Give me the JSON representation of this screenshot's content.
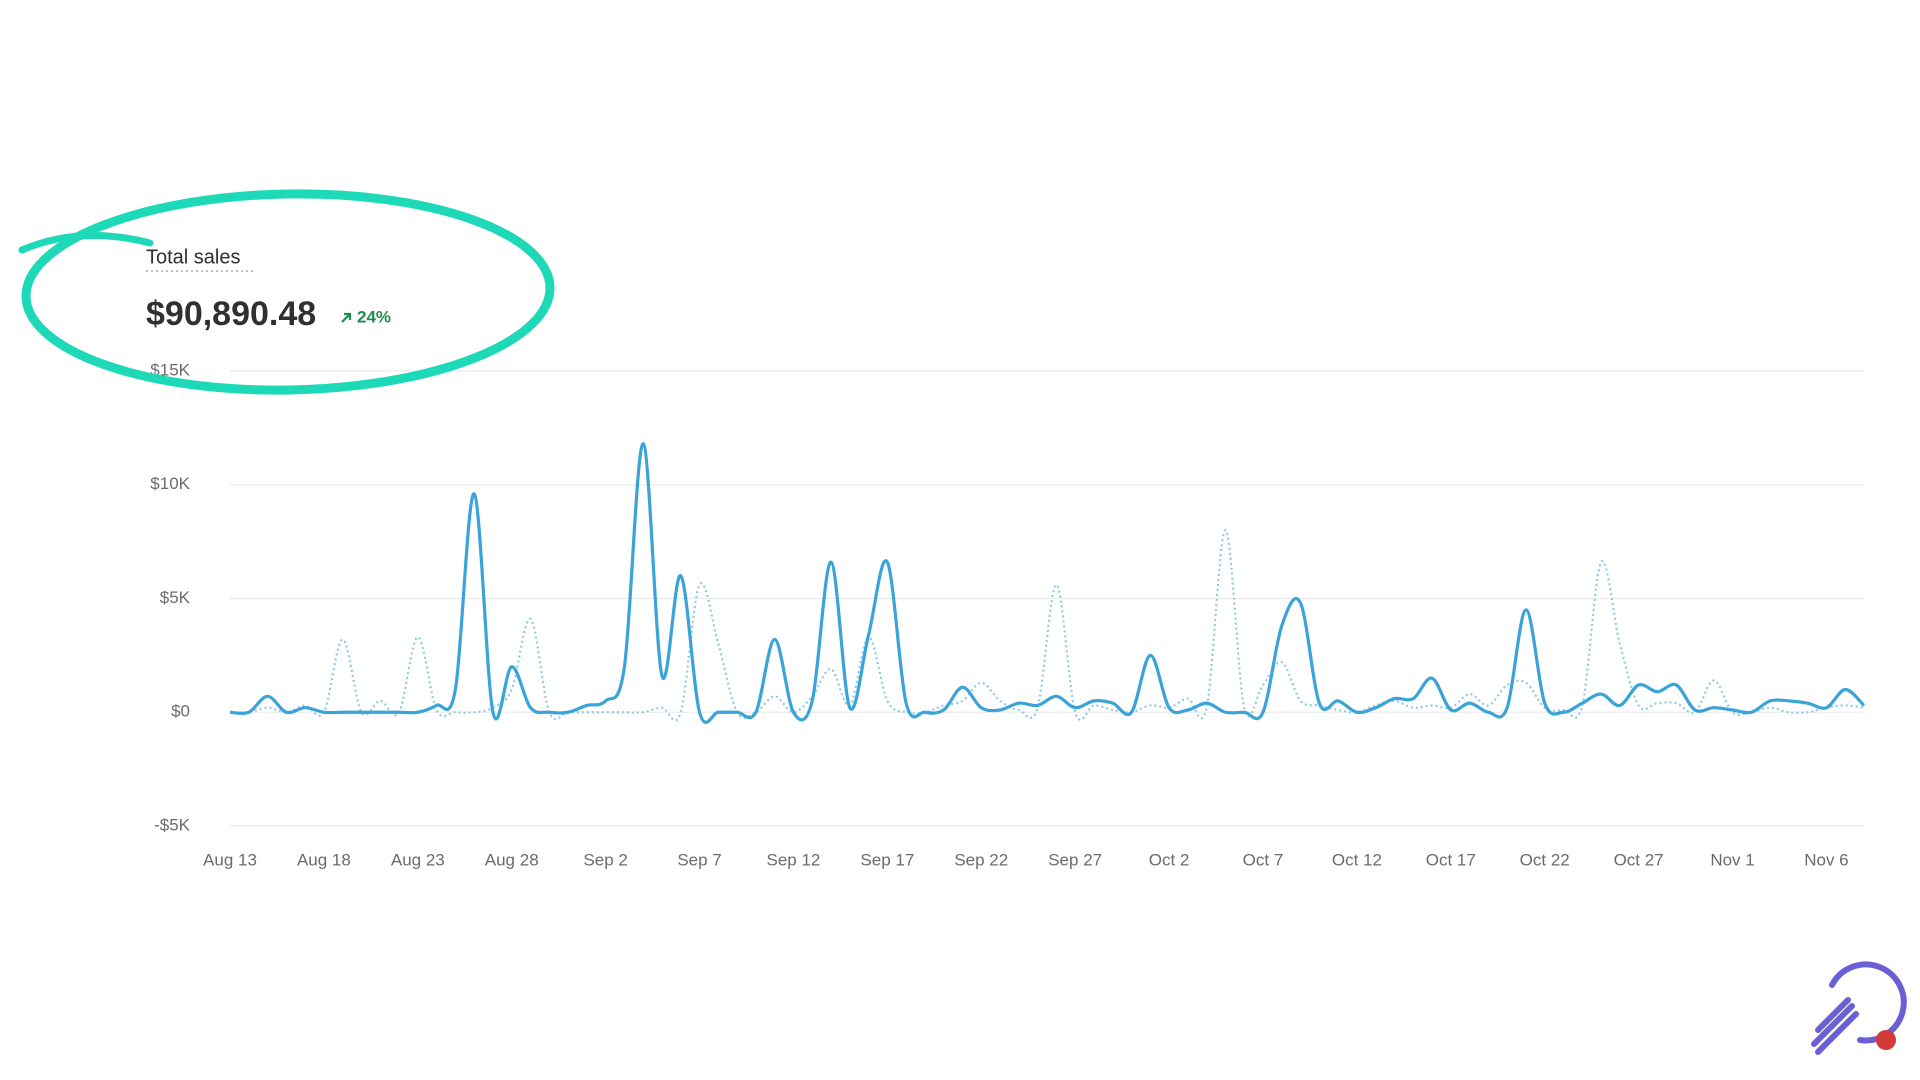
{
  "chart_data": {
    "type": "line",
    "title": "Total sales",
    "summary_value": "$90,890.48",
    "change": "24%",
    "categories": [
      "Aug 13",
      null,
      null,
      null,
      null,
      "Aug 18",
      null,
      null,
      null,
      null,
      "Aug 23",
      null,
      null,
      null,
      null,
      "Aug 28",
      null,
      null,
      null,
      null,
      "Sep 2",
      null,
      null,
      null,
      null,
      "Sep 7",
      null,
      null,
      null,
      null,
      "Sep 12",
      null,
      null,
      null,
      null,
      "Sep 17",
      null,
      null,
      null,
      null,
      "Sep 22",
      null,
      null,
      null,
      null,
      "Sep 27",
      null,
      null,
      null,
      null,
      "Oct 2",
      null,
      null,
      null,
      null,
      "Oct 7",
      null,
      null,
      null,
      null,
      "Oct 12",
      null,
      null,
      null,
      null,
      "Oct 17",
      null,
      null,
      null,
      null,
      "Oct 22",
      null,
      null,
      null,
      null,
      "Oct 27",
      null,
      null,
      null,
      null,
      "Nov 1",
      null,
      null,
      null,
      null,
      "Nov 6",
      null,
      null
    ],
    "series": [
      {
        "color": "#3aa3d8",
        "dash": "solid",
        "values": [
          0,
          0,
          700,
          0,
          200,
          0,
          0,
          0,
          0,
          0,
          0,
          300,
          1000,
          9600,
          0,
          2000,
          200,
          0,
          0,
          300,
          500,
          2000,
          11800,
          1600,
          6000,
          0,
          0,
          0,
          0,
          3200,
          0,
          500,
          6600,
          200,
          3400,
          6600,
          400,
          0,
          100,
          1100,
          200,
          100,
          400,
          300,
          700,
          200,
          500,
          400,
          0,
          2500,
          200,
          100,
          400,
          0,
          0,
          0,
          3800,
          4800,
          400,
          500,
          0,
          200,
          600,
          600,
          1500,
          100,
          400,
          0,
          200,
          4500,
          400,
          0,
          400,
          800,
          300,
          1200,
          900,
          1200,
          100,
          200,
          100,
          0,
          500,
          500,
          400,
          200,
          1000,
          300
        ]
      },
      {
        "color": "#8ec9e6",
        "dash": "dotted",
        "values": [
          0,
          0,
          200,
          0,
          300,
          0,
          3200,
          0,
          500,
          0,
          3300,
          100,
          0,
          0,
          200,
          1000,
          4100,
          0,
          0,
          0,
          0,
          0,
          0,
          200,
          0,
          5600,
          3000,
          0,
          0,
          700,
          0,
          700,
          1900,
          300,
          3300,
          500,
          0,
          0,
          300,
          500,
          1300,
          500,
          100,
          200,
          5600,
          0,
          300,
          100,
          0,
          300,
          200,
          600,
          200,
          8000,
          200,
          1200,
          2200,
          500,
          300,
          100,
          0,
          300,
          500,
          200,
          300,
          200,
          800,
          300,
          1200,
          1300,
          200,
          100,
          300,
          6600,
          3000,
          300,
          400,
          400,
          0,
          1400,
          0,
          0,
          200,
          0,
          0,
          200,
          300,
          200
        ]
      }
    ],
    "ylim": [
      -5000,
      15000
    ],
    "yticks": [
      {
        "value": -5000,
        "label": "-$5K"
      },
      {
        "value": 0,
        "label": "$0"
      },
      {
        "value": 5000,
        "label": "$5K"
      },
      {
        "value": 10000,
        "label": "$10K"
      },
      {
        "value": 15000,
        "label": "$15K"
      }
    ],
    "grid": true
  }
}
